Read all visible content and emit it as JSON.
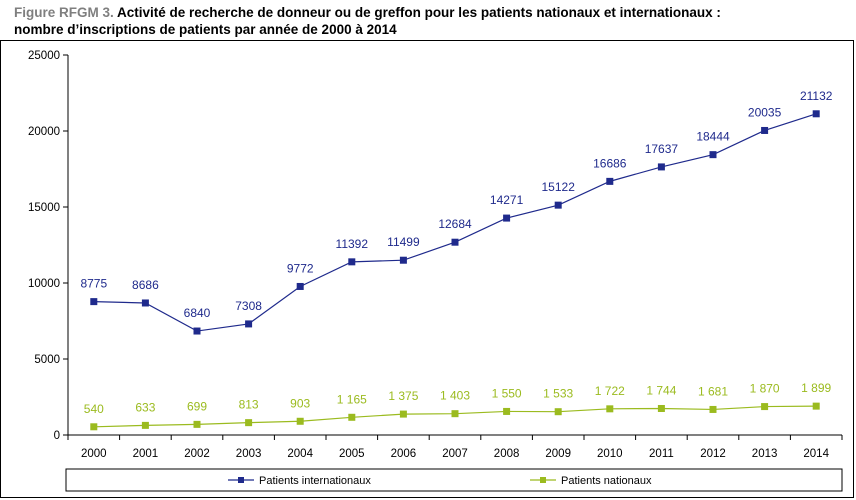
{
  "figure": {
    "prefix": "Figure RFGM 3.",
    "title_line1": " Activité de recherche de donneur ou de greffon pour les patients nationaux et internationaux :",
    "title_line2": "nombre d’inscriptions de patients par année de 2000 à 2014"
  },
  "chart_data": {
    "type": "line",
    "categories": [
      "2000",
      "2001",
      "2002",
      "2003",
      "2004",
      "2005",
      "2006",
      "2007",
      "2008",
      "2009",
      "2010",
      "2011",
      "2012",
      "2013",
      "2014"
    ],
    "ylim": [
      0,
      25000
    ],
    "yticks": [
      "0",
      "5000",
      "10000",
      "15000",
      "20000",
      "25000"
    ],
    "grid": false,
    "legend_position": "bottom",
    "series": [
      {
        "name": "Patients internationaux",
        "color": "#1f2a8c",
        "values": [
          8775,
          8686,
          6840,
          7308,
          9772,
          11392,
          11499,
          12684,
          14271,
          15122,
          16686,
          17637,
          18444,
          20035,
          21132
        ],
        "labels": [
          "8775",
          "8686",
          "6840",
          "7308",
          "9772",
          "11392",
          "11499",
          "12684",
          "14271",
          "15122",
          "16686",
          "17637",
          "18444",
          "20035",
          "21132"
        ]
      },
      {
        "name": "Patients nationaux",
        "color": "#9bbb1f",
        "values": [
          540,
          633,
          699,
          813,
          903,
          1165,
          1375,
          1403,
          1550,
          1533,
          1722,
          1744,
          1681,
          1870,
          1899
        ],
        "labels": [
          "540",
          "633",
          "699",
          "813",
          "903",
          "1 165",
          "1 375",
          "1 403",
          "1 550",
          "1 533",
          "1 722",
          "1 744",
          "1 681",
          "1 870",
          "1 899"
        ]
      }
    ]
  }
}
